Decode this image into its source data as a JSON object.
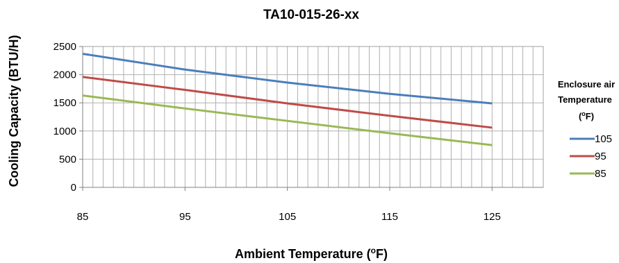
{
  "chart_data": {
    "type": "line",
    "title": "TA10-015-26-xx",
    "xlabel": "Ambient Temperature (",
    "xlabel_sup": "o",
    "xlabel_end": "F)",
    "ylabel": "Cooling Capacity (BTU/H)",
    "xlim": [
      85,
      130
    ],
    "ylim": [
      0,
      2500
    ],
    "xticks": [
      85,
      95,
      105,
      115,
      125
    ],
    "yticks": [
      0,
      500,
      1000,
      1500,
      2000,
      2500
    ],
    "x_minor_step": 1,
    "grid": true,
    "legend": {
      "position": "right",
      "title_lines": [
        "Enclosure air",
        "Temperature"
      ],
      "title_unit_open": "(",
      "title_unit_sup": "o",
      "title_unit_close": "F)"
    },
    "series": [
      {
        "name": "105",
        "color": "#4a7ebb",
        "x": [
          85,
          95,
          105,
          115,
          125
        ],
        "values": [
          2370,
          2090,
          1860,
          1660,
          1490
        ]
      },
      {
        "name": "95",
        "color": "#be4b48",
        "x": [
          85,
          95,
          105,
          115,
          125
        ],
        "values": [
          1960,
          1730,
          1490,
          1270,
          1060
        ]
      },
      {
        "name": "85",
        "color": "#98b954",
        "x": [
          85,
          95,
          105,
          115,
          125
        ],
        "values": [
          1630,
          1400,
          1180,
          960,
          750
        ]
      }
    ]
  }
}
